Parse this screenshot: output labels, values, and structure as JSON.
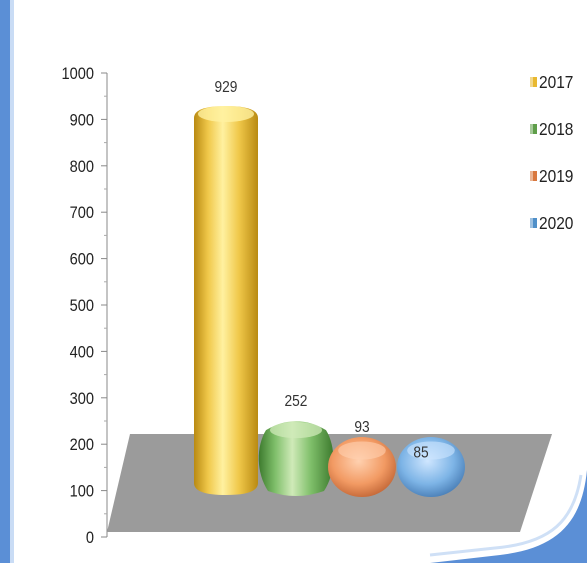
{
  "chart_data": {
    "type": "bar",
    "categories": [
      "2017",
      "2018",
      "2019",
      "2020"
    ],
    "values": [
      929,
      252,
      93,
      85
    ],
    "data_labels": [
      "929",
      "252",
      "93",
      "85"
    ],
    "ylim": [
      0,
      1000
    ],
    "yticks": [
      "0",
      "100",
      "200",
      "300",
      "400",
      "500",
      "600",
      "700",
      "800",
      "900",
      "1000"
    ],
    "legend": [
      {
        "label": "2017",
        "color": "#e8b830"
      },
      {
        "label": "2018",
        "color": "#5f9e4a"
      },
      {
        "label": "2019",
        "color": "#d9783f"
      },
      {
        "label": "2020",
        "color": "#4f8fc8"
      }
    ],
    "legend_position": "right",
    "style": "3d-cylinder",
    "grid": false
  },
  "colors": {
    "frame_blue": "#5b8fd6",
    "floor": "#9b9b9b",
    "bar_light": [
      "#fff1a0",
      "#cfeab8",
      "#ffd1b0",
      "#cfe6ff"
    ],
    "bar_mid": [
      "#f0c84a",
      "#7fbf6a",
      "#f29a63",
      "#7db4e6"
    ],
    "bar_dark": [
      "#b98a12",
      "#3d7a2e",
      "#b5582a",
      "#3a6ea8"
    ]
  }
}
